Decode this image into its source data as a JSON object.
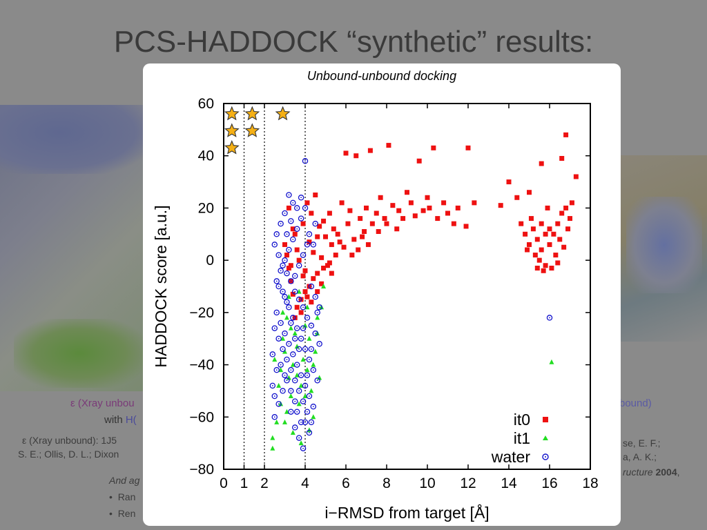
{
  "slide": {
    "title": "PCS-HADDOCK “synthetic” results:",
    "left_caption_line1": "ε (Xray unbou",
    "left_caption_line2_prefix": "with ",
    "left_caption_line2_highlight": "H(",
    "left_ref_line1": "ε (Xray unbound): 1J5",
    "left_ref_line2": "S. E.; Ollis, D. L.; Dixon",
    "left_italic": "And ag",
    "left_bullets": [
      "Ran",
      "Ren"
    ],
    "right_caption": "bound)",
    "right_ref_line1": "se, E. F.;",
    "right_ref_line2": "a, A. K.;",
    "right_ref_line3_italic": "ructure",
    "right_ref_line3_bold": " 2004",
    "right_ref_line3_end": ","
  },
  "chart_data": {
    "type": "scatter",
    "title": "Unbound-unbound docking",
    "xlabel": "i−RMSD from target [Å]",
    "ylabel": "HADDOCK score [a.u.]",
    "xlim": [
      0,
      18
    ],
    "ylim": [
      -80,
      60
    ],
    "xticks": [
      0,
      1,
      2,
      4,
      6,
      8,
      10,
      12,
      14,
      16,
      18
    ],
    "yticks": [
      -80,
      -60,
      -40,
      -20,
      0,
      20,
      40,
      60
    ],
    "ytick_labels": [
      "−80",
      "−60",
      "−40",
      "−20",
      "0",
      "20",
      "40",
      "60"
    ],
    "vertical_dotted_lines_at_x": [
      1,
      2,
      4
    ],
    "legend_position": "bottom-right",
    "grid": false,
    "stars": [
      {
        "x": 0.4,
        "y": 56
      },
      {
        "x": 1.4,
        "y": 56
      },
      {
        "x": 2.9,
        "y": 56
      },
      {
        "x": 0.4,
        "y": 49.5
      },
      {
        "x": 1.4,
        "y": 49.5
      },
      {
        "x": 0.4,
        "y": 43
      }
    ],
    "series": [
      {
        "name": "it0",
        "marker": "square",
        "color": "#ee1111",
        "points": [
          [
            6.0,
            41
          ],
          [
            6.5,
            40
          ],
          [
            7.2,
            42
          ],
          [
            8.1,
            44
          ],
          [
            9.6,
            38
          ],
          [
            10.3,
            43
          ],
          [
            12.0,
            43
          ],
          [
            16.8,
            48
          ],
          [
            16.6,
            39
          ],
          [
            15.6,
            37
          ],
          [
            17.3,
            32
          ],
          [
            14.0,
            30
          ],
          [
            14.4,
            24
          ],
          [
            13.6,
            21
          ],
          [
            15.0,
            26
          ],
          [
            10.0,
            24
          ],
          [
            10.8,
            22
          ],
          [
            11.5,
            20
          ],
          [
            9.2,
            22
          ],
          [
            8.6,
            19
          ],
          [
            7.9,
            16
          ],
          [
            7.3,
            14
          ],
          [
            6.9,
            11
          ],
          [
            6.4,
            8
          ],
          [
            5.9,
            5
          ],
          [
            5.5,
            2
          ],
          [
            5.2,
            -1
          ],
          [
            4.9,
            -3
          ],
          [
            4.6,
            -5
          ],
          [
            4.4,
            -7
          ],
          [
            4.2,
            -10
          ],
          [
            4.0,
            -12
          ],
          [
            3.8,
            -15
          ],
          [
            3.6,
            -18
          ],
          [
            3.4,
            -13
          ],
          [
            3.3,
            -8
          ],
          [
            3.2,
            -3
          ],
          [
            3.1,
            2
          ],
          [
            3.0,
            6
          ],
          [
            3.5,
            10
          ],
          [
            3.9,
            14
          ],
          [
            4.3,
            18
          ],
          [
            4.7,
            13
          ],
          [
            5.0,
            9
          ],
          [
            5.3,
            6
          ],
          [
            5.6,
            10
          ],
          [
            6.1,
            14
          ],
          [
            6.7,
            16
          ],
          [
            7.5,
            18
          ],
          [
            8.3,
            21
          ],
          [
            9.0,
            26
          ],
          [
            9.8,
            19
          ],
          [
            10.5,
            16
          ],
          [
            11.3,
            14
          ],
          [
            11.9,
            13
          ],
          [
            12.3,
            22
          ],
          [
            4.1,
            22
          ],
          [
            4.5,
            25
          ],
          [
            5.8,
            22
          ],
          [
            6.2,
            19
          ],
          [
            7.0,
            20
          ],
          [
            7.7,
            24
          ],
          [
            8.8,
            16
          ],
          [
            3.7,
            0
          ],
          [
            3.3,
            -2
          ],
          [
            3.9,
            -6
          ],
          [
            4.8,
            1
          ],
          [
            5.1,
            -2
          ],
          [
            3.6,
            4
          ],
          [
            4.2,
            7
          ],
          [
            4.6,
            9
          ],
          [
            5.4,
            12
          ],
          [
            6.6,
            4
          ],
          [
            7.1,
            6
          ],
          [
            3.8,
            -20
          ],
          [
            3.5,
            -22
          ],
          [
            4.3,
            -16
          ],
          [
            4.0,
            -4
          ],
          [
            4.4,
            3
          ],
          [
            15.2,
            12
          ],
          [
            15.4,
            8
          ],
          [
            15.6,
            4
          ],
          [
            15.8,
            -2
          ],
          [
            15.7,
            -4
          ],
          [
            16.0,
            6
          ],
          [
            16.2,
            10
          ],
          [
            16.4,
            14
          ],
          [
            16.6,
            18
          ],
          [
            16.8,
            20
          ],
          [
            17.0,
            16
          ],
          [
            16.9,
            12
          ],
          [
            15.1,
            16
          ],
          [
            14.8,
            10
          ],
          [
            15.3,
            2
          ],
          [
            15.5,
            0
          ],
          [
            16.1,
            -3
          ],
          [
            16.3,
            2
          ],
          [
            16.5,
            8
          ],
          [
            14.6,
            14
          ],
          [
            15.9,
            20
          ],
          [
            16.7,
            5
          ],
          [
            15.0,
            6
          ],
          [
            15.4,
            -3
          ],
          [
            15.6,
            14
          ],
          [
            16.0,
            12
          ],
          [
            17.1,
            22
          ],
          [
            16.4,
            -1
          ],
          [
            14.9,
            4
          ],
          [
            15.8,
            10
          ],
          [
            6.3,
            2
          ],
          [
            5.7,
            7
          ],
          [
            4.9,
            15
          ],
          [
            5.2,
            18
          ],
          [
            3.4,
            12
          ],
          [
            3.2,
            20
          ],
          [
            4.6,
            -12
          ],
          [
            4.1,
            -14
          ],
          [
            4.8,
            -9
          ],
          [
            5.3,
            -5
          ],
          [
            6.8,
            9
          ],
          [
            7.6,
            11
          ],
          [
            8.0,
            14
          ],
          [
            8.5,
            12
          ],
          [
            9.4,
            17
          ],
          [
            10.1,
            20
          ],
          [
            11.0,
            18
          ]
        ]
      },
      {
        "name": "it1",
        "marker": "triangle",
        "color": "#22dd22",
        "points": [
          [
            2.4,
            -68
          ],
          [
            2.4,
            -72
          ],
          [
            2.6,
            -62
          ],
          [
            2.5,
            -38
          ],
          [
            2.7,
            -48
          ],
          [
            2.8,
            -42
          ],
          [
            2.9,
            -30
          ],
          [
            3.0,
            -35
          ],
          [
            3.1,
            -22
          ],
          [
            3.2,
            -45
          ],
          [
            3.3,
            -52
          ],
          [
            3.4,
            -40
          ],
          [
            3.5,
            -28
          ],
          [
            3.6,
            -33
          ],
          [
            3.7,
            -55
          ],
          [
            3.8,
            -48
          ],
          [
            3.9,
            -38
          ],
          [
            4.0,
            -25
          ],
          [
            4.1,
            -42
          ],
          [
            4.2,
            -30
          ],
          [
            4.3,
            -50
          ],
          [
            4.4,
            -60
          ],
          [
            4.5,
            -35
          ],
          [
            4.6,
            -22
          ],
          [
            4.7,
            -45
          ],
          [
            4.8,
            -18
          ],
          [
            4.9,
            -10
          ],
          [
            3.0,
            -62
          ],
          [
            3.4,
            -66
          ],
          [
            3.8,
            -70
          ],
          [
            4.2,
            -65
          ],
          [
            2.8,
            -55
          ],
          [
            3.1,
            -58
          ],
          [
            3.6,
            -44
          ],
          [
            4.0,
            -52
          ],
          [
            4.4,
            -40
          ],
          [
            4.1,
            -18
          ],
          [
            3.3,
            -26
          ],
          [
            2.9,
            -20
          ],
          [
            3.2,
            -14
          ],
          [
            3.7,
            -12
          ],
          [
            4.6,
            -28
          ],
          [
            16.1,
            -39
          ]
        ]
      },
      {
        "name": "water",
        "marker": "circle",
        "color": "#1111cc",
        "points": [
          [
            4.0,
            38
          ],
          [
            3.2,
            25
          ],
          [
            3.4,
            22
          ],
          [
            3.6,
            20
          ],
          [
            3.8,
            24
          ],
          [
            3.0,
            18
          ],
          [
            2.8,
            14
          ],
          [
            2.6,
            10
          ],
          [
            2.5,
            6
          ],
          [
            2.7,
            2
          ],
          [
            2.9,
            -2
          ],
          [
            3.1,
            -5
          ],
          [
            3.3,
            -8
          ],
          [
            3.5,
            -12
          ],
          [
            3.7,
            -15
          ],
          [
            3.9,
            -18
          ],
          [
            4.1,
            -22
          ],
          [
            4.3,
            -25
          ],
          [
            4.5,
            -28
          ],
          [
            4.7,
            -32
          ],
          [
            2.6,
            -20
          ],
          [
            2.8,
            -24
          ],
          [
            3.0,
            -28
          ],
          [
            3.2,
            -32
          ],
          [
            3.4,
            -36
          ],
          [
            3.6,
            -40
          ],
          [
            3.8,
            -44
          ],
          [
            4.0,
            -48
          ],
          [
            4.2,
            -52
          ],
          [
            4.4,
            -56
          ],
          [
            2.5,
            -26
          ],
          [
            2.7,
            -30
          ],
          [
            2.9,
            -34
          ],
          [
            3.1,
            -38
          ],
          [
            3.3,
            -42
          ],
          [
            3.5,
            -46
          ],
          [
            3.7,
            -50
          ],
          [
            3.9,
            -54
          ],
          [
            4.1,
            -58
          ],
          [
            4.3,
            -62
          ],
          [
            2.5,
            -60
          ],
          [
            2.7,
            -55
          ],
          [
            2.9,
            -50
          ],
          [
            3.1,
            -46
          ],
          [
            3.3,
            -58
          ],
          [
            3.5,
            -64
          ],
          [
            3.7,
            -68
          ],
          [
            3.9,
            -72
          ],
          [
            4.2,
            -66
          ],
          [
            4.0,
            -62
          ],
          [
            2.6,
            -8
          ],
          [
            2.8,
            -4
          ],
          [
            3.0,
            0
          ],
          [
            3.2,
            4
          ],
          [
            3.4,
            8
          ],
          [
            3.6,
            12
          ],
          [
            3.8,
            16
          ],
          [
            4.0,
            20
          ],
          [
            4.2,
            10
          ],
          [
            4.4,
            6
          ],
          [
            3.0,
            -14
          ],
          [
            3.2,
            -18
          ],
          [
            3.4,
            -22
          ],
          [
            3.6,
            -26
          ],
          [
            3.8,
            -30
          ],
          [
            4.0,
            -34
          ],
          [
            4.2,
            -38
          ],
          [
            4.4,
            -42
          ],
          [
            4.6,
            -46
          ],
          [
            4.6,
            -20
          ],
          [
            2.4,
            -36
          ],
          [
            2.4,
            -48
          ],
          [
            2.5,
            -52
          ],
          [
            2.6,
            -42
          ],
          [
            3.3,
            -24
          ],
          [
            3.5,
            -6
          ],
          [
            3.7,
            -2
          ],
          [
            3.9,
            2
          ],
          [
            4.1,
            6
          ],
          [
            4.3,
            -10
          ],
          [
            4.5,
            -14
          ],
          [
            4.7,
            -18
          ],
          [
            3.1,
            -16
          ],
          [
            2.9,
            -12
          ],
          [
            2.7,
            -10
          ],
          [
            3.3,
            15
          ],
          [
            3.1,
            10
          ],
          [
            4.5,
            14
          ],
          [
            16.0,
            -22
          ],
          [
            3.5,
            -30
          ],
          [
            3.9,
            -26
          ],
          [
            3.7,
            -34
          ],
          [
            3.3,
            -50
          ],
          [
            3.5,
            -54
          ],
          [
            4.1,
            -44
          ],
          [
            4.3,
            -34
          ],
          [
            2.8,
            -40
          ],
          [
            3.0,
            -44
          ],
          [
            3.6,
            -58
          ],
          [
            3.8,
            -62
          ]
        ]
      }
    ]
  }
}
